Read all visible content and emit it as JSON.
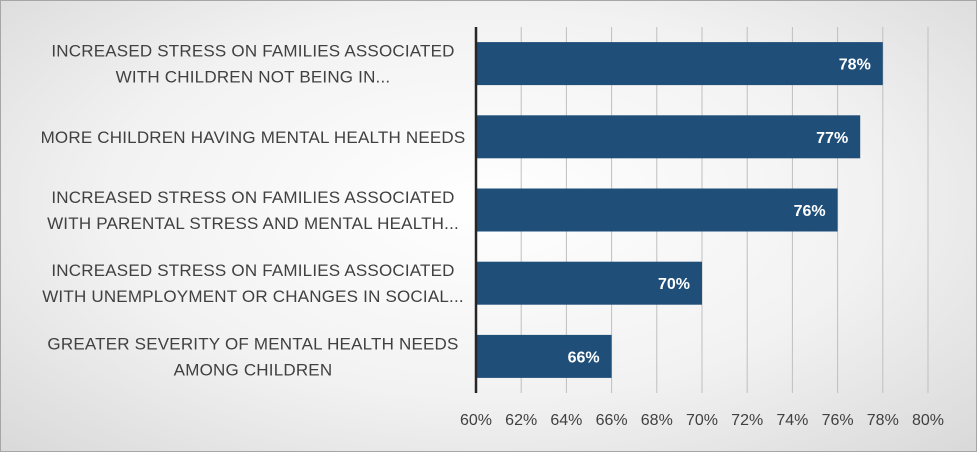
{
  "chart_data": {
    "type": "bar",
    "orientation": "horizontal",
    "categories": [
      [
        "INCREASED STRESS ON FAMILIES ASSOCIATED",
        "WITH CHILDREN NOT BEING IN..."
      ],
      [
        "MORE CHILDREN HAVING MENTAL HEALTH NEEDS"
      ],
      [
        "INCREASED STRESS ON FAMILIES ASSOCIATED",
        "WITH PARENTAL STRESS AND MENTAL HEALTH..."
      ],
      [
        "INCREASED STRESS ON FAMILIES ASSOCIATED",
        "WITH UNEMPLOYMENT OR CHANGES IN SOCIAL..."
      ],
      [
        "GREATER SEVERITY OF MENTAL HEALTH NEEDS",
        "AMONG CHILDREN"
      ]
    ],
    "values": [
      78,
      77,
      76,
      70,
      66
    ],
    "data_labels": [
      "78%",
      "77%",
      "76%",
      "70%",
      "66%"
    ],
    "xlim": [
      60,
      80
    ],
    "x_ticks": [
      60,
      62,
      64,
      66,
      68,
      70,
      72,
      74,
      76,
      78,
      80
    ],
    "x_tick_labels": [
      "60%",
      "62%",
      "64%",
      "66%",
      "68%",
      "70%",
      "72%",
      "74%",
      "76%",
      "78%",
      "80%"
    ],
    "grid": true,
    "legend": "none",
    "title": "",
    "xlabel": "",
    "ylabel": "",
    "colors": {
      "bar": "#1f4e79",
      "grid": "#bfbfbf",
      "axis": "#262626",
      "text": "#404040",
      "label": "#ffffff"
    }
  }
}
